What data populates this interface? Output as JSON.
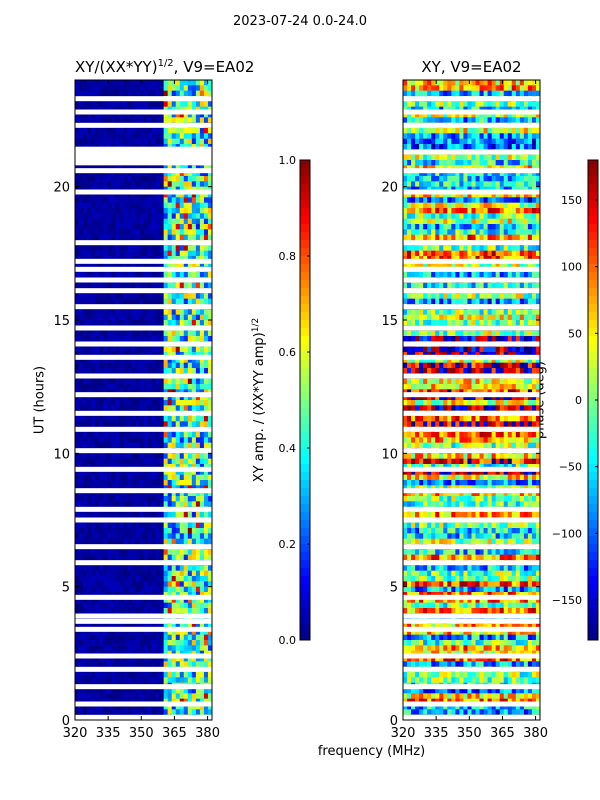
{
  "suptitle": "2023-07-24 0.0-24.0",
  "chart_data": [
    {
      "type": "heatmap",
      "title": "XY/(XX*YY)",
      "title_sup": "1/2",
      "title_suffix": ", V9=EA02",
      "xlabel": "frequency (MHz)",
      "ylabel": "UT (hours)",
      "xlim": [
        320,
        382
      ],
      "ylim": [
        0,
        24
      ],
      "xticks": [
        320,
        335,
        350,
        365,
        380
      ],
      "yticks": [
        0,
        5,
        10,
        15,
        20
      ],
      "colorbar": {
        "label": "XY amp. / (XX*YY amp)",
        "label_sup": "1/2",
        "range": [
          0.0,
          1.0
        ],
        "ticks": [
          "0.0",
          "0.2",
          "0.4",
          "0.6",
          "0.8",
          "1.0"
        ],
        "colormap": "jet"
      },
      "active_band_mhz": [
        360,
        382
      ],
      "flagged_ut_hours": [
        0.1,
        0.6,
        1.25,
        1.9,
        2.4,
        3.4,
        3.7,
        3.9,
        4.6,
        5.9,
        6.5,
        7.5,
        7.9,
        8.6,
        9.4,
        10.1,
        10.9,
        11.5,
        12.2,
        12.9,
        13.6,
        14.1,
        14.7,
        15.5,
        16.1,
        16.5,
        16.9,
        17.2,
        17.9,
        19.8,
        20.6,
        21.3,
        22.3,
        22.8,
        23.3
      ]
    },
    {
      "type": "heatmap",
      "title": "XY, V9=EA02",
      "xlabel": "frequency (MHz)",
      "ylabel": "",
      "xlim": [
        320,
        382
      ],
      "ylim": [
        0,
        24
      ],
      "xticks": [
        320,
        335,
        350,
        365,
        380
      ],
      "yticks": [
        0,
        5,
        10,
        15,
        20
      ],
      "colorbar": {
        "label": "phase (deg)",
        "range": [
          -180,
          180
        ],
        "ticks": [
          "−150",
          "−100",
          "−50",
          "0",
          "50",
          "100",
          "150"
        ],
        "tick_values": [
          -150,
          -100,
          -50,
          0,
          50,
          100,
          150
        ],
        "colormap": "jet"
      },
      "flagged_ut_hours": [
        0.1,
        0.6,
        1.25,
        1.9,
        2.4,
        3.4,
        3.7,
        3.9,
        4.6,
        5.9,
        6.5,
        7.5,
        7.9,
        8.6,
        9.4,
        10.1,
        10.9,
        11.5,
        12.2,
        12.9,
        13.6,
        14.1,
        14.7,
        15.5,
        16.1,
        16.5,
        16.9,
        17.2,
        17.9,
        19.8,
        20.6,
        21.3,
        22.3,
        22.8,
        23.3
      ]
    }
  ]
}
